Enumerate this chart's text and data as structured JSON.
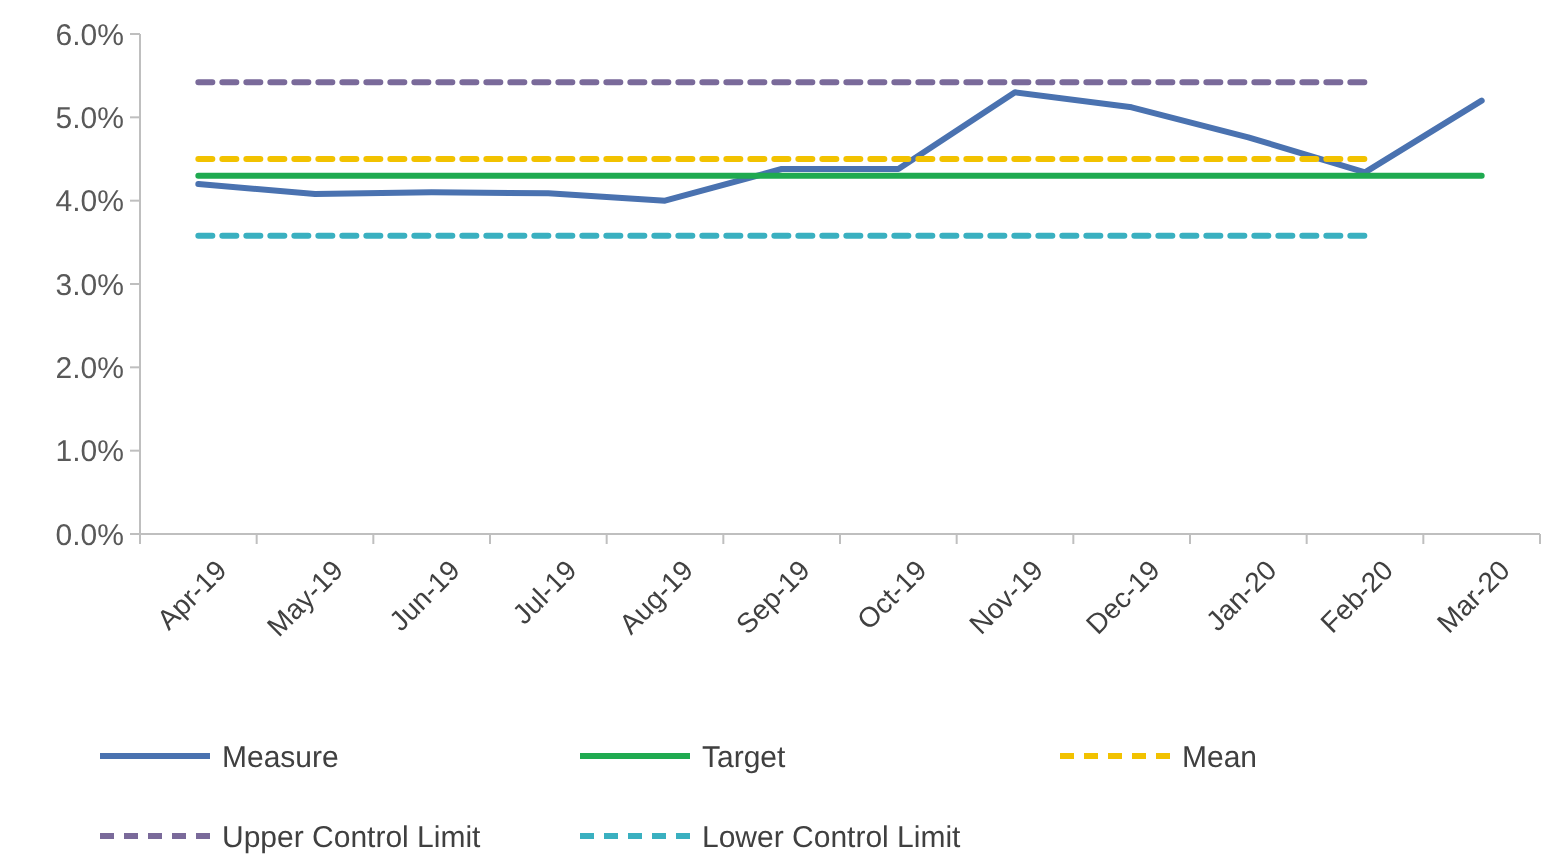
{
  "chart_data": {
    "type": "line",
    "categories": [
      "Apr-19",
      "May-19",
      "Jun-19",
      "Jul-19",
      "Aug-19",
      "Sep-19",
      "Oct-19",
      "Nov-19",
      "Dec-19",
      "Jan-20",
      "Feb-20",
      "Mar-20"
    ],
    "series": [
      {
        "name": "Measure",
        "color": "#4a72b0",
        "line_style": "solid",
        "values": [
          4.2,
          4.08,
          4.1,
          4.09,
          4.0,
          4.38,
          4.38,
          5.3,
          5.12,
          4.76,
          4.34,
          5.2
        ]
      },
      {
        "name": "Target",
        "color": "#1faa50",
        "line_style": "solid",
        "values": [
          4.3,
          4.3,
          4.3,
          4.3,
          4.3,
          4.3,
          4.3,
          4.3,
          4.3,
          4.3,
          4.3,
          4.3
        ]
      },
      {
        "name": "Mean",
        "color": "#f2c200",
        "line_style": "dashed",
        "values": [
          4.5,
          4.5,
          4.5,
          4.5,
          4.5,
          4.5,
          4.5,
          4.5,
          4.5,
          4.5,
          4.5,
          null
        ]
      },
      {
        "name": "Upper Control Limit",
        "color": "#7a6a9a",
        "line_style": "dashed",
        "values": [
          5.42,
          5.42,
          5.42,
          5.42,
          5.42,
          5.42,
          5.42,
          5.42,
          5.42,
          5.42,
          5.42,
          null
        ]
      },
      {
        "name": "Lower Control Limit",
        "color": "#3ab0c0",
        "line_style": "dashed",
        "values": [
          3.58,
          3.58,
          3.58,
          3.58,
          3.58,
          3.58,
          3.58,
          3.58,
          3.58,
          3.58,
          3.58,
          null
        ]
      }
    ],
    "ylim": [
      0,
      6
    ],
    "yticks": [
      {
        "value": 0,
        "label": "0.0%"
      },
      {
        "value": 1,
        "label": "1.0%"
      },
      {
        "value": 2,
        "label": "2.0%"
      },
      {
        "value": 3,
        "label": "3.0%"
      },
      {
        "value": 4,
        "label": "4.0%"
      },
      {
        "value": 5,
        "label": "5.0%"
      },
      {
        "value": 6,
        "label": "6.0%"
      }
    ],
    "grid": false,
    "legend": "bottom",
    "marker": "none"
  }
}
